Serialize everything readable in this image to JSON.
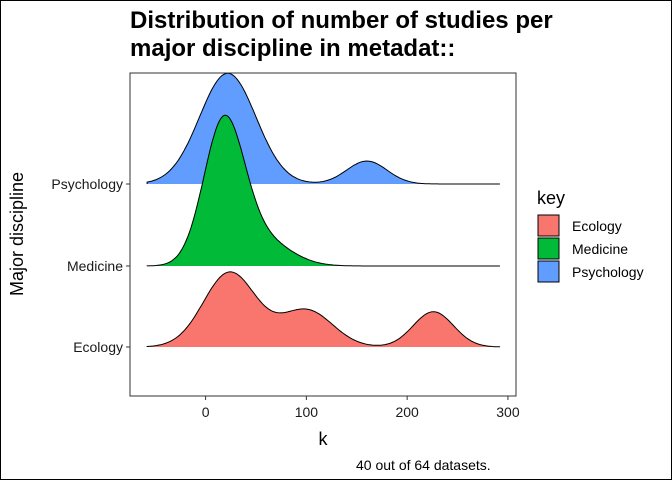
{
  "chart_data": {
    "type": "area",
    "subtype": "ridgeline",
    "title_lines": [
      "Distribution of number of studies per",
      "major discipline in metadat::"
    ],
    "xlabel": "k",
    "ylabel": "Major discipline",
    "caption": "40 out of 64 datasets.",
    "xlim": [
      -75,
      308
    ],
    "x_ticks": [
      0,
      100,
      200,
      300
    ],
    "categories": [
      "Ecology",
      "Medicine",
      "Psychology"
    ],
    "legend": {
      "title": "key",
      "position": "right",
      "entries": [
        {
          "label": "Ecology",
          "color": "#F8766D"
        },
        {
          "label": "Medicine",
          "color": "#00BA38"
        },
        {
          "label": "Psychology",
          "color": "#619CFF"
        }
      ]
    },
    "grid": false,
    "series": [
      {
        "name": "Ecology",
        "color": "#F8766D",
        "x_range": [
          -58,
          292
        ],
        "components": [
          {
            "center": 24,
            "sd": 26,
            "height": 0.91
          },
          {
            "center": 100,
            "sd": 26,
            "height": 0.45
          },
          {
            "center": 226,
            "sd": 20,
            "height": 0.43
          }
        ]
      },
      {
        "name": "Medicine",
        "color": "#00BA38",
        "x_range": [
          -58,
          292
        ],
        "components": [
          {
            "center": 18,
            "sd": 20,
            "height": 1.7
          },
          {
            "center": 55,
            "sd": 28,
            "height": 0.32
          }
        ]
      },
      {
        "name": "Psychology",
        "color": "#619CFF",
        "x_range": [
          -58,
          292
        ],
        "components": [
          {
            "center": 22,
            "sd": 28,
            "height": 1.35
          },
          {
            "center": 160,
            "sd": 20,
            "height": 0.28
          }
        ]
      }
    ]
  }
}
